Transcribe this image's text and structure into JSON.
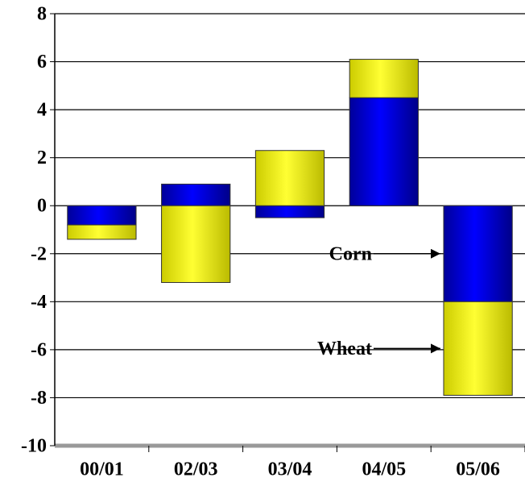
{
  "chart_data": {
    "type": "bar",
    "stacked": true,
    "categories": [
      "00/01",
      "02/03",
      "03/04",
      "04/05",
      "05/06"
    ],
    "series": [
      {
        "name": "Corn",
        "color": "#0000ee",
        "values": [
          -0.8,
          0.9,
          -0.5,
          4.5,
          -4.0
        ]
      },
      {
        "name": "Wheat",
        "color": "#ffff00",
        "values": [
          -0.6,
          -3.2,
          2.3,
          1.6,
          -3.9
        ]
      }
    ],
    "ylim": [
      -10,
      8
    ],
    "yticks": [
      -10,
      -8,
      -6,
      -4,
      -2,
      0,
      2,
      4,
      6,
      8
    ],
    "grid": true
  }
}
